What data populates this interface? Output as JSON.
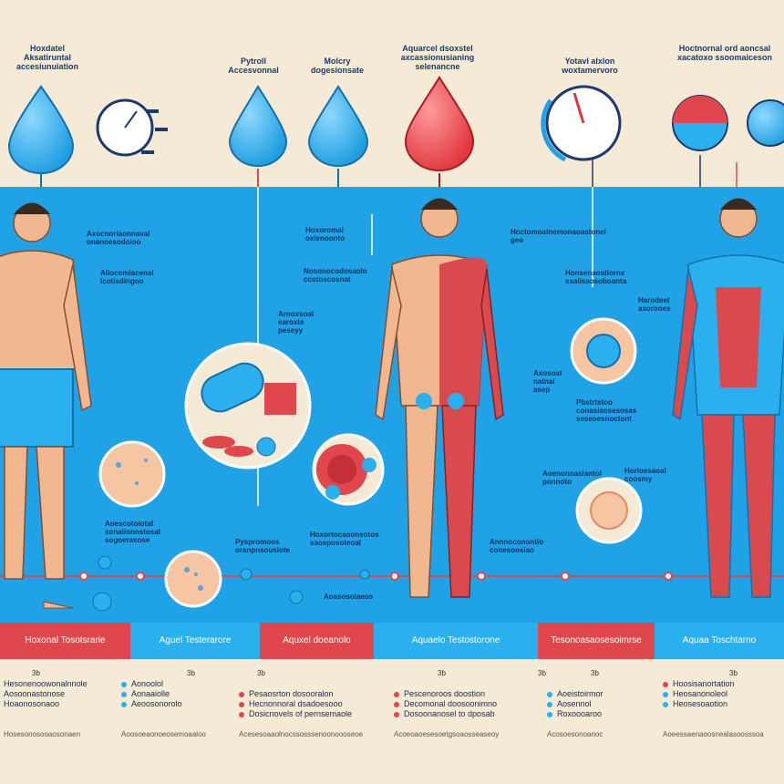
{
  "colors": {
    "panel": "#1fa3e6",
    "red": "#e0474c",
    "blue": "#2ab0ee",
    "skin": "#f1b78f",
    "cream": "#f4ead6",
    "navy": "#1d3a6e"
  },
  "top_labels": [
    {
      "text": "Hoxdatel\nAksatiruntal\naccesiunuiation"
    },
    {
      "text": "Pytroll\nAccesvonnal"
    },
    {
      "text": "Molcry\ndogesionsate"
    },
    {
      "text": "Aquarcel dsoxstel\naxcassionusianing\nselenancne"
    },
    {
      "text": "Yotavl alxlon\nwoxtamervoro"
    },
    {
      "text": "Hoctnornal ord aoncsal\nxacatoxo ssoomaiceson"
    }
  ],
  "callouts": [
    {
      "text": "Axocnoriaonnaval\nonanoesodoioo"
    },
    {
      "text": "Aliocomiacenal\nIcotisdingoo"
    },
    {
      "text": "Hoxoromal\noxisnoonto"
    },
    {
      "text": "Nosonocodosaolo\nccotoscosnat"
    },
    {
      "text": "Arnoxsoal\nearoxte\npeseyy"
    },
    {
      "text": "Hoctomoainemonaoastonel\ngeo"
    },
    {
      "text": "Honsenaoatiornx\nssalisaosoboanta"
    },
    {
      "text": "Harodeet\naxorooes"
    },
    {
      "text": "Axosost\nnatnal\nasep"
    },
    {
      "text": "Pbstrtstoo\nconasisosesosas\nseseoesnoctont"
    },
    {
      "text": "Aoenonoasiantol\nponnoto"
    },
    {
      "text": "Horioesaoal\ncoosmy"
    },
    {
      "text": "Aoescotoiotaf\nsonaiionostosal\nsogoerasose"
    },
    {
      "text": "Pyspromoos\noranpnsousiote"
    },
    {
      "text": "Hoxortocaoonsotos\nsaosposoteoal"
    },
    {
      "text": "Aoasosoiaeos"
    },
    {
      "text": "Annnoconontio\nconesoosiao"
    }
  ],
  "bands": [
    {
      "text": "Hoxonal Tosotsrarie",
      "color": "#e0474c"
    },
    {
      "text": "Aguel Testerarore",
      "color": "#2ab0ee"
    },
    {
      "text": "Aquxel doeanolo",
      "color": "#e0474c"
    },
    {
      "text": "Aquaelo Testostorone",
      "color": "#2ab0ee"
    },
    {
      "text": "Tesonoasaosesoimrse",
      "color": "#e0474c"
    },
    {
      "text": "Aquaa Toschtarno",
      "color": "#2ab0ee"
    }
  ],
  "band_numbers": [
    "3b",
    "3b",
    "3b",
    "3b",
    "3b",
    "3b",
    "3b"
  ],
  "legend": [
    {
      "lines": [
        "Hesonenoowonalnnole",
        "Aosoonastonose",
        "Hoaonosonaoo"
      ]
    },
    {
      "lines": [
        "Aonoolol",
        "Aonaaiolle",
        "Aeoosonorolo"
      ]
    },
    {
      "lines": [
        "Pesaosrton dosooralon",
        "Hecnonnoral dsadoesooo",
        "Dosicnovels of pernsemaole"
      ]
    },
    {
      "lines": [
        "Pescenoroos doostion",
        "Decomonal doosoonimno",
        "Dosoonanosel to dposab"
      ]
    },
    {
      "lines": [
        "Aoeistoirmor",
        "Aosennol",
        "Roxoooaroo"
      ]
    },
    {
      "lines": [
        "Hoosisanortation",
        "Heosanonoleol",
        "Heosesoaotion"
      ]
    }
  ],
  "legend_notes": [
    "Hosesonosooaosonaen",
    "Aoosoeaonoeosemoaaloo",
    "Acesesoaaolnocssosssenoonoooseoe",
    "Acoeoaoesesoetgsoaosseaseoy",
    "Acosoesonoanoc",
    "Aoeessaenaoosnealasoosssoa"
  ]
}
